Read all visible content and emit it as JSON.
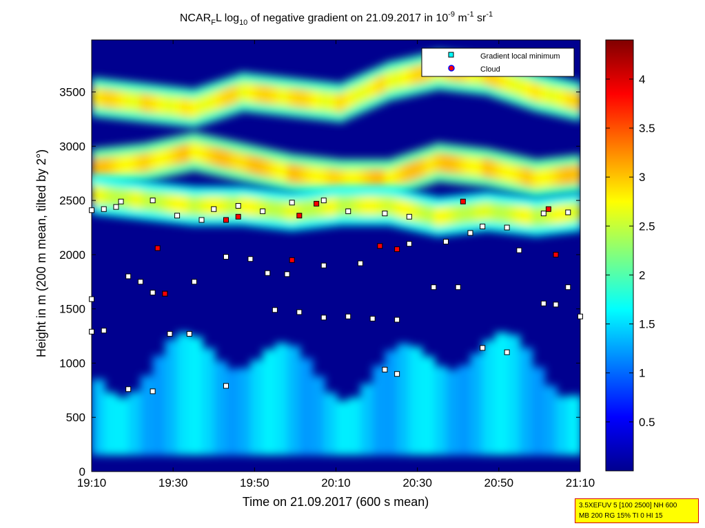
{
  "chart_data": {
    "type": "heatmap",
    "title": {
      "pre": "NCAR",
      "sub1": "F",
      "mid1": "L log",
      "sub2": "10",
      "mid2": " of negative gradient on 21.09.2017 in 10",
      "sup1": "-9",
      "mid3": " m",
      "sup2": "-1",
      "mid4": " sr",
      "sup3": "-1"
    },
    "xlabel": "Time on 21.09.2017 (600 s mean)",
    "ylabel": "Height in m (200 m mean, tilted by 2°)",
    "x_ticks": [
      "19:10",
      "19:30",
      "19:50",
      "20:10",
      "20:30",
      "20:50",
      "21:10"
    ],
    "x_range_hours": [
      0,
      2
    ],
    "y_ticks": [
      0,
      500,
      1000,
      1500,
      2000,
      2500,
      3000,
      3500
    ],
    "y_range": [
      0,
      3980
    ],
    "colorbar": {
      "ticks": [
        "0.5",
        "1",
        "1.5",
        "2",
        "2.5",
        "3",
        "3.5",
        "4"
      ],
      "values": [
        0.5,
        1,
        1.5,
        2,
        2.5,
        3,
        3.5,
        4
      ],
      "range": [
        0,
        4.4
      ],
      "colormap": "jet"
    },
    "legend": {
      "placement": "top-right",
      "entries": [
        {
          "label": "Gradient local minimum",
          "marker": "square",
          "color": "#00ffff"
        },
        {
          "label": "Cloud",
          "marker": "circle",
          "color": "#ff0000",
          "edge": "#0000ff"
        }
      ]
    },
    "layers": [
      {
        "name": "upper-aerosol-layer",
        "x": [
          0,
          0.2,
          0.4,
          0.6,
          0.8,
          1.0,
          1.2,
          1.4,
          1.6,
          1.8,
          2.0
        ],
        "y": [
          3450,
          3400,
          3350,
          3500,
          3450,
          3400,
          3600,
          3700,
          3650,
          3500,
          3400
        ],
        "value": 2.8
      },
      {
        "name": "middle-aerosol-layer",
        "x": [
          0,
          0.2,
          0.4,
          0.6,
          0.8,
          1.0,
          1.2,
          1.4,
          1.6,
          1.8,
          2.0
        ],
        "y": [
          2800,
          2850,
          2950,
          2850,
          2750,
          2700,
          2700,
          2850,
          2800,
          2700,
          2750
        ],
        "value": 2.9
      },
      {
        "name": "lower-aerosol-layer",
        "x": [
          0,
          0.2,
          0.4,
          0.6,
          0.8,
          1.0,
          1.2,
          1.4,
          1.6,
          1.8,
          2.0
        ],
        "y": [
          2550,
          2500,
          2450,
          2450,
          2400,
          2450,
          2450,
          2350,
          2400,
          2350,
          2400
        ],
        "value": 2.6
      }
    ],
    "gradient_minima": [
      {
        "x": 0.0,
        "y": 2410
      },
      {
        "x": 0.05,
        "y": 2420
      },
      {
        "x": 0.1,
        "y": 2440
      },
      {
        "x": 0.12,
        "y": 2490
      },
      {
        "x": 0.25,
        "y": 2500
      },
      {
        "x": 0.35,
        "y": 2360
      },
      {
        "x": 0.45,
        "y": 2320
      },
      {
        "x": 0.5,
        "y": 2420
      },
      {
        "x": 0.6,
        "y": 2450
      },
      {
        "x": 0.7,
        "y": 2400
      },
      {
        "x": 0.82,
        "y": 2480
      },
      {
        "x": 0.95,
        "y": 2500
      },
      {
        "x": 1.05,
        "y": 2400
      },
      {
        "x": 1.2,
        "y": 2380
      },
      {
        "x": 1.3,
        "y": 2350
      },
      {
        "x": 1.6,
        "y": 2260
      },
      {
        "x": 1.7,
        "y": 2250
      },
      {
        "x": 1.85,
        "y": 2380
      },
      {
        "x": 1.95,
        "y": 2390
      },
      {
        "x": 0.15,
        "y": 1800
      },
      {
        "x": 0.2,
        "y": 1750
      },
      {
        "x": 0.25,
        "y": 1650
      },
      {
        "x": 0.3,
        "y": 1640
      },
      {
        "x": 0.42,
        "y": 1750
      },
      {
        "x": 0.55,
        "y": 1980
      },
      {
        "x": 0.65,
        "y": 1960
      },
      {
        "x": 0.72,
        "y": 1830
      },
      {
        "x": 0.8,
        "y": 1820
      },
      {
        "x": 0.95,
        "y": 1900
      },
      {
        "x": 1.1,
        "y": 1920
      },
      {
        "x": 1.3,
        "y": 2100
      },
      {
        "x": 1.45,
        "y": 2120
      },
      {
        "x": 1.55,
        "y": 2200
      },
      {
        "x": 1.75,
        "y": 2040
      },
      {
        "x": 0.0,
        "y": 1590
      },
      {
        "x": 0.0,
        "y": 1290
      },
      {
        "x": 0.05,
        "y": 1300
      },
      {
        "x": 0.15,
        "y": 760
      },
      {
        "x": 0.25,
        "y": 740
      },
      {
        "x": 0.32,
        "y": 1270
      },
      {
        "x": 0.4,
        "y": 1270
      },
      {
        "x": 0.55,
        "y": 790
      },
      {
        "x": 0.75,
        "y": 1490
      },
      {
        "x": 0.85,
        "y": 1470
      },
      {
        "x": 0.95,
        "y": 1420
      },
      {
        "x": 1.05,
        "y": 1430
      },
      {
        "x": 1.15,
        "y": 1410
      },
      {
        "x": 1.25,
        "y": 1400
      },
      {
        "x": 1.2,
        "y": 940
      },
      {
        "x": 1.25,
        "y": 900
      },
      {
        "x": 1.4,
        "y": 1700
      },
      {
        "x": 1.5,
        "y": 1700
      },
      {
        "x": 1.6,
        "y": 1140
      },
      {
        "x": 1.7,
        "y": 1100
      },
      {
        "x": 1.85,
        "y": 1550
      },
      {
        "x": 1.9,
        "y": 1540
      },
      {
        "x": 1.95,
        "y": 1700
      },
      {
        "x": 2.0,
        "y": 1430
      }
    ],
    "clouds": [
      {
        "x": 0.27,
        "y": 2060
      },
      {
        "x": 0.3,
        "y": 1640
      },
      {
        "x": 0.55,
        "y": 2320
      },
      {
        "x": 0.6,
        "y": 2350
      },
      {
        "x": 0.85,
        "y": 2360
      },
      {
        "x": 0.92,
        "y": 2470
      },
      {
        "x": 0.82,
        "y": 1950
      },
      {
        "x": 1.25,
        "y": 2050
      },
      {
        "x": 1.18,
        "y": 2080
      },
      {
        "x": 1.52,
        "y": 2490
      },
      {
        "x": 1.87,
        "y": 2420
      },
      {
        "x": 1.9,
        "y": 2000
      }
    ]
  },
  "params_box": {
    "line1": "3.5XEFUV 5 [100 2500] NH 600",
    "line2": "MB 200 RG 15% TI 0 HI 15"
  }
}
